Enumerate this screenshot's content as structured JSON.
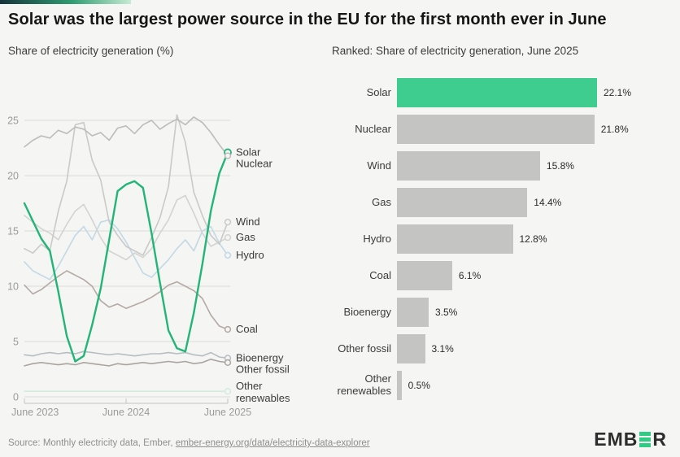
{
  "header": {
    "title": "Solar was the largest power source in the EU for the first month ever in June",
    "left_subtitle": "Share of electricity generation (%)",
    "right_subtitle": "Ranked: Share of electricity generation, June 2025"
  },
  "footer": {
    "source_prefix": "Source: Monthly electricity data, Ember, ",
    "source_link": "ember-energy.org/data/electricity-data-explorer",
    "logo_part1": "EMB",
    "logo_part2": "R",
    "logo_icon": "triple-bar-e-icon",
    "logo_bar_color": "#2ecb84"
  },
  "colors": {
    "background": "#f5f5f3",
    "accent_gradient": [
      "#16343c",
      "#2f9d72",
      "#c6ebd4"
    ],
    "solar_green": "#23b577",
    "bar_green": "#3ecd8e",
    "bar_gray": "#c4c4c3",
    "grid": "#dcdcda",
    "axis": "#c4c4c2",
    "tick_text": "#9b9b9b",
    "label_text": "#3b3b3b"
  },
  "chart_data": [
    {
      "type": "line",
      "title": "Share of electricity generation (%)",
      "x": [
        "Jun 2023",
        "Jul 2023",
        "Aug 2023",
        "Sep 2023",
        "Oct 2023",
        "Nov 2023",
        "Dec 2023",
        "Jan 2024",
        "Feb 2024",
        "Mar 2024",
        "Apr 2024",
        "May 2024",
        "Jun 2024",
        "Jul 2024",
        "Aug 2024",
        "Sep 2024",
        "Oct 2024",
        "Nov 2024",
        "Dec 2024",
        "Jan 2025",
        "Feb 2025",
        "Mar 2025",
        "Apr 2025",
        "May 2025",
        "Jun 2025"
      ],
      "xtick_labels": [
        "June 2023",
        "June 2024",
        "June 2025"
      ],
      "xtick_month_index": [
        0,
        12,
        24
      ],
      "ylim": [
        0,
        25
      ],
      "yticks": [
        0,
        5,
        10,
        15,
        20,
        25
      ],
      "grid": true,
      "legend_position": "end-of-line-labels",
      "series": [
        {
          "name": "Solar",
          "color": "#23b577",
          "values": [
            17.5,
            15.9,
            14.3,
            13.2,
            9.5,
            5.5,
            3.2,
            3.7,
            6.5,
            9.8,
            14.2,
            18.6,
            19.2,
            19.5,
            18.9,
            14.8,
            10.3,
            6.0,
            4.4,
            4.1,
            7.6,
            12.0,
            16.8,
            20.2,
            22.1
          ]
        },
        {
          "name": "Nuclear",
          "color": "#bcbcbc",
          "values": [
            22.6,
            23.2,
            23.6,
            23.4,
            24.1,
            23.8,
            24.4,
            24.2,
            23.6,
            23.9,
            23.2,
            24.3,
            24.5,
            23.8,
            24.6,
            25.0,
            24.2,
            24.7,
            25.1,
            24.6,
            25.3,
            24.8,
            23.9,
            22.8,
            21.8
          ]
        },
        {
          "name": "Wind",
          "color": "#c9c9c9",
          "values": [
            13.4,
            13.0,
            13.8,
            13.2,
            16.8,
            19.5,
            24.6,
            24.8,
            21.4,
            19.6,
            15.8,
            14.6,
            13.6,
            13.2,
            12.8,
            14.4,
            16.2,
            19.0,
            25.5,
            23.0,
            18.5,
            16.4,
            14.6,
            13.8,
            15.8
          ]
        },
        {
          "name": "Gas",
          "color": "#d3d3d3",
          "values": [
            16.4,
            15.8,
            15.2,
            14.8,
            14.2,
            15.6,
            16.8,
            17.4,
            16.0,
            14.4,
            13.2,
            12.8,
            12.4,
            13.0,
            12.6,
            13.4,
            14.8,
            16.0,
            17.8,
            18.2,
            16.6,
            14.8,
            13.6,
            14.0,
            14.4
          ]
        },
        {
          "name": "Hydro",
          "color": "#c2d9e5",
          "values": [
            12.2,
            11.4,
            11.0,
            10.6,
            11.8,
            13.2,
            14.6,
            15.4,
            14.2,
            15.8,
            16.0,
            15.2,
            14.0,
            12.6,
            11.2,
            10.8,
            11.6,
            12.4,
            13.4,
            14.2,
            13.2,
            15.0,
            15.4,
            13.9,
            12.8
          ]
        },
        {
          "name": "Coal",
          "color": "#b4a9a3",
          "values": [
            10.1,
            9.3,
            9.7,
            10.3,
            10.9,
            11.4,
            11.0,
            10.6,
            10.0,
            8.7,
            8.1,
            8.4,
            8.0,
            8.3,
            8.6,
            9.0,
            9.5,
            10.1,
            10.4,
            10.0,
            9.6,
            8.9,
            7.4,
            6.4,
            6.1
          ]
        },
        {
          "name": "Bioenergy",
          "color": "#b6bec4",
          "values": [
            3.8,
            3.7,
            3.9,
            4.0,
            3.9,
            4.0,
            3.9,
            4.1,
            4.0,
            3.9,
            3.8,
            3.9,
            3.8,
            3.7,
            3.8,
            3.9,
            3.9,
            4.0,
            3.9,
            4.0,
            3.8,
            3.7,
            4.0,
            3.6,
            3.5
          ]
        },
        {
          "name": "Other fossil",
          "color": "#aba5a0",
          "values": [
            2.8,
            3.0,
            3.1,
            3.0,
            2.9,
            3.0,
            2.9,
            3.1,
            3.0,
            2.9,
            2.8,
            3.0,
            2.9,
            3.0,
            3.1,
            3.0,
            3.1,
            3.2,
            3.1,
            3.2,
            3.0,
            3.1,
            3.4,
            3.2,
            3.1
          ]
        },
        {
          "name": "Other renewables",
          "color": "#d4ecdf",
          "label_lines": [
            "Other",
            "renewables"
          ],
          "values": [
            0.5,
            0.5,
            0.5,
            0.5,
            0.5,
            0.5,
            0.5,
            0.5,
            0.5,
            0.5,
            0.5,
            0.5,
            0.5,
            0.5,
            0.5,
            0.5,
            0.5,
            0.5,
            0.5,
            0.5,
            0.5,
            0.5,
            0.5,
            0.5,
            0.5
          ]
        }
      ]
    },
    {
      "type": "bar",
      "orientation": "horizontal",
      "title": "Ranked: Share of electricity generation, June 2025",
      "categories": [
        "Solar",
        "Nuclear",
        "Wind",
        "Gas",
        "Hydro",
        "Coal",
        "Bioenergy",
        "Other fossil",
        "Other renewables"
      ],
      "values": [
        22.1,
        21.8,
        15.8,
        14.4,
        12.8,
        6.1,
        3.5,
        3.1,
        0.5
      ],
      "value_labels": [
        "22.1%",
        "21.8%",
        "15.8%",
        "14.4%",
        "12.8%",
        "6.1%",
        "3.5%",
        "3.1%",
        "0.5%"
      ],
      "highlight_index": 0,
      "highlight_color": "#3ecd8e",
      "bar_color": "#c4c4c3",
      "xlim": [
        0,
        24
      ],
      "grid": false
    }
  ]
}
